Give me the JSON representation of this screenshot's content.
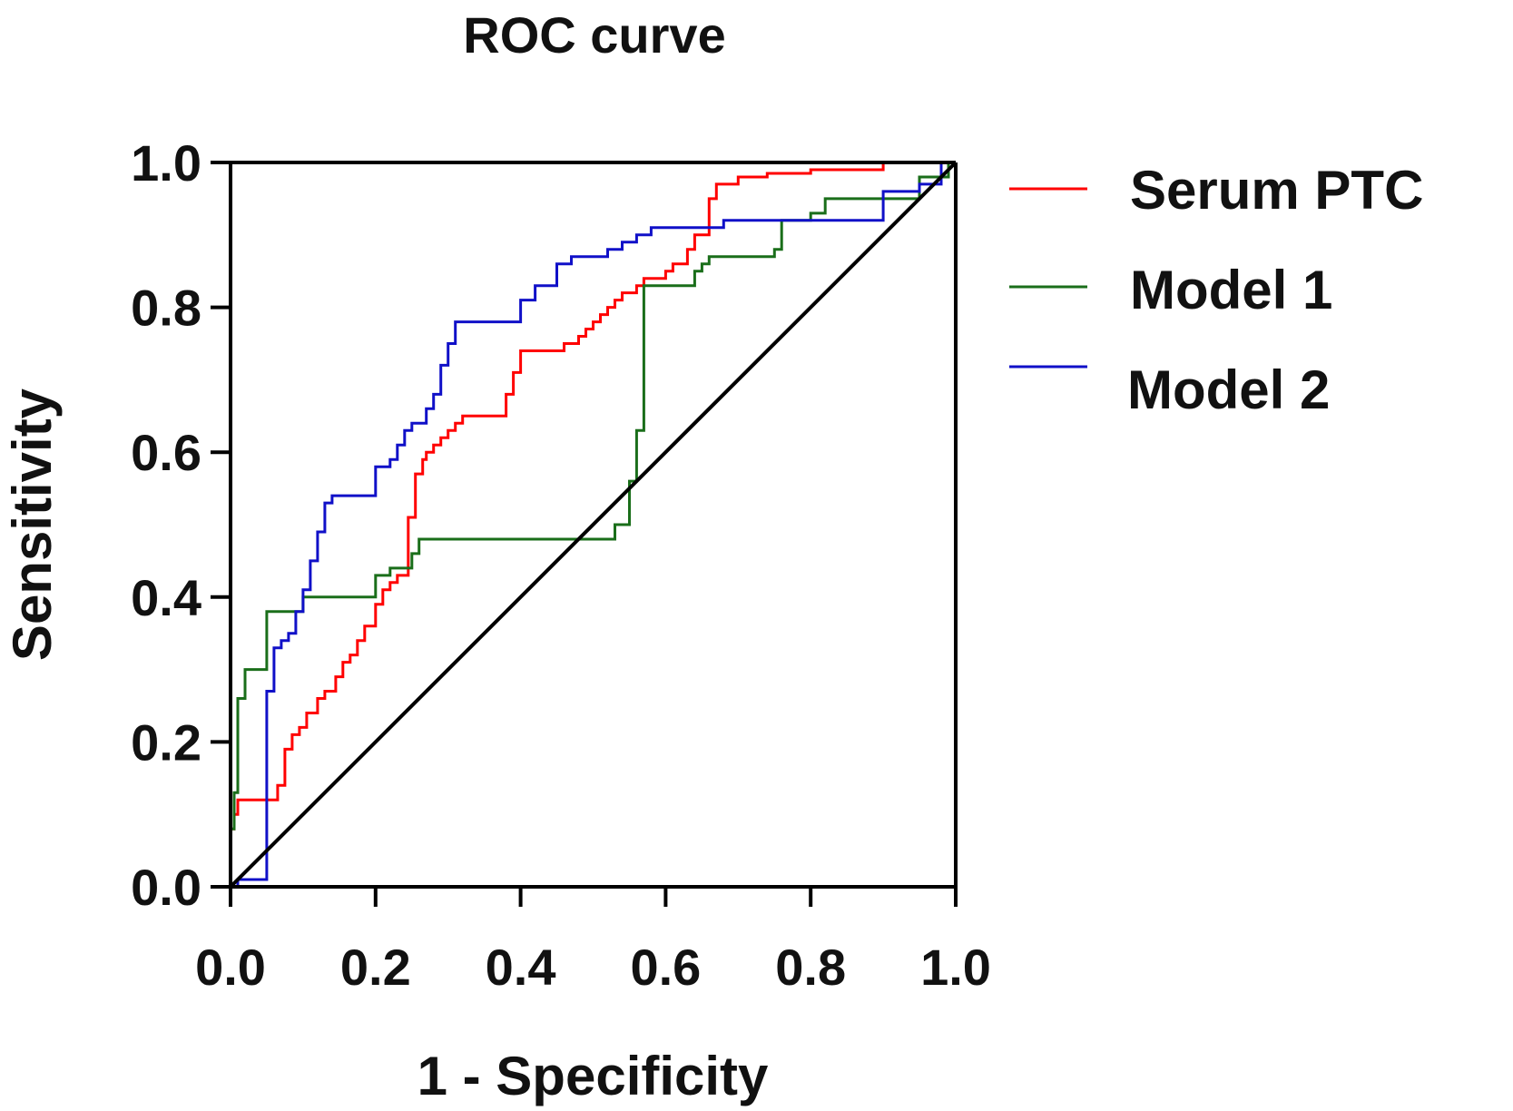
{
  "chart_data": {
    "type": "line",
    "title": "ROC curve",
    "xlabel": "1 - Specificity",
    "ylabel": "Sensitivity",
    "xlim": [
      0,
      1
    ],
    "ylim": [
      0,
      1
    ],
    "xticks": [
      0,
      0.2,
      0.4,
      0.6,
      0.8,
      1.0
    ],
    "yticks": [
      0,
      0.2,
      0.4,
      0.6,
      0.8,
      1.0
    ],
    "xtick_labels": [
      "0.0",
      "0.2",
      "0.4",
      "0.6",
      "0.8",
      "1.0"
    ],
    "ytick_labels": [
      "0.0",
      "0.2",
      "0.4",
      "0.6",
      "0.8",
      "1.0"
    ],
    "grid": false,
    "legend_position": "right",
    "reference_line": {
      "name": "Reference",
      "color": "#000000",
      "x": [
        0,
        1
      ],
      "y": [
        0,
        1
      ]
    },
    "series": [
      {
        "name": "Serum PTC",
        "color": "#ff0000",
        "x": [
          0,
          0,
          0.005,
          0.005,
          0.01,
          0.01,
          0.025,
          0.025,
          0.065,
          0.065,
          0.075,
          0.075,
          0.085,
          0.085,
          0.095,
          0.095,
          0.105,
          0.105,
          0.12,
          0.12,
          0.13,
          0.13,
          0.145,
          0.145,
          0.155,
          0.155,
          0.165,
          0.165,
          0.175,
          0.175,
          0.185,
          0.185,
          0.2,
          0.2,
          0.21,
          0.21,
          0.22,
          0.22,
          0.23,
          0.23,
          0.245,
          0.245,
          0.255,
          0.255,
          0.265,
          0.265,
          0.27,
          0.27,
          0.28,
          0.28,
          0.29,
          0.29,
          0.3,
          0.3,
          0.31,
          0.31,
          0.32,
          0.32,
          0.33,
          0.33,
          0.38,
          0.38,
          0.39,
          0.39,
          0.4,
          0.4,
          0.46,
          0.46,
          0.48,
          0.48,
          0.49,
          0.49,
          0.5,
          0.5,
          0.51,
          0.51,
          0.52,
          0.52,
          0.53,
          0.53,
          0.54,
          0.54,
          0.56,
          0.56,
          0.57,
          0.57,
          0.6,
          0.6,
          0.61,
          0.61,
          0.63,
          0.63,
          0.64,
          0.64,
          0.66,
          0.66,
          0.67,
          0.67,
          0.7,
          0.7,
          0.74,
          0.74,
          0.8,
          0.8,
          0.9,
          0.9,
          1.0
        ],
        "y": [
          0,
          0.08,
          0.08,
          0.1,
          0.1,
          0.12,
          0.12,
          0.12,
          0.12,
          0.14,
          0.14,
          0.19,
          0.19,
          0.21,
          0.21,
          0.22,
          0.22,
          0.24,
          0.24,
          0.26,
          0.26,
          0.27,
          0.27,
          0.29,
          0.29,
          0.31,
          0.31,
          0.32,
          0.32,
          0.34,
          0.34,
          0.36,
          0.36,
          0.39,
          0.39,
          0.41,
          0.41,
          0.42,
          0.42,
          0.43,
          0.43,
          0.51,
          0.51,
          0.57,
          0.57,
          0.59,
          0.59,
          0.6,
          0.6,
          0.61,
          0.61,
          0.62,
          0.62,
          0.63,
          0.63,
          0.64,
          0.64,
          0.65,
          0.65,
          0.65,
          0.65,
          0.68,
          0.68,
          0.71,
          0.71,
          0.74,
          0.74,
          0.75,
          0.75,
          0.76,
          0.76,
          0.77,
          0.77,
          0.78,
          0.78,
          0.79,
          0.79,
          0.8,
          0.8,
          0.81,
          0.81,
          0.82,
          0.82,
          0.83,
          0.83,
          0.84,
          0.84,
          0.85,
          0.85,
          0.86,
          0.86,
          0.88,
          0.88,
          0.9,
          0.9,
          0.95,
          0.95,
          0.97,
          0.97,
          0.98,
          0.98,
          0.985,
          0.985,
          0.99,
          0.99,
          1.0,
          1.0
        ]
      },
      {
        "name": "Model 1",
        "color": "#1a6e1a",
        "x": [
          0,
          0,
          0.005,
          0.005,
          0.01,
          0.01,
          0.02,
          0.02,
          0.05,
          0.05,
          0.1,
          0.1,
          0.2,
          0.2,
          0.22,
          0.22,
          0.25,
          0.25,
          0.26,
          0.26,
          0.53,
          0.53,
          0.55,
          0.55,
          0.56,
          0.56,
          0.57,
          0.57,
          0.64,
          0.64,
          0.65,
          0.65,
          0.66,
          0.66,
          0.75,
          0.75,
          0.76,
          0.76,
          0.8,
          0.8,
          0.82,
          0.82,
          0.95,
          0.95,
          0.99,
          0.99,
          1.0
        ],
        "y": [
          0,
          0.08,
          0.08,
          0.13,
          0.13,
          0.26,
          0.26,
          0.3,
          0.3,
          0.38,
          0.38,
          0.4,
          0.4,
          0.43,
          0.43,
          0.44,
          0.44,
          0.46,
          0.46,
          0.48,
          0.48,
          0.5,
          0.5,
          0.56,
          0.56,
          0.63,
          0.63,
          0.83,
          0.83,
          0.85,
          0.85,
          0.86,
          0.86,
          0.87,
          0.87,
          0.88,
          0.88,
          0.92,
          0.92,
          0.93,
          0.93,
          0.95,
          0.95,
          0.98,
          0.98,
          1.0,
          1.0
        ]
      },
      {
        "name": "Model 2",
        "color": "#1010c8",
        "x": [
          0,
          0.01,
          0.01,
          0.02,
          0.02,
          0.05,
          0.05,
          0.06,
          0.06,
          0.07,
          0.07,
          0.08,
          0.08,
          0.09,
          0.09,
          0.1,
          0.1,
          0.11,
          0.11,
          0.12,
          0.12,
          0.13,
          0.13,
          0.14,
          0.14,
          0.2,
          0.2,
          0.22,
          0.22,
          0.23,
          0.23,
          0.24,
          0.24,
          0.25,
          0.25,
          0.27,
          0.27,
          0.28,
          0.28,
          0.29,
          0.29,
          0.3,
          0.3,
          0.31,
          0.31,
          0.4,
          0.4,
          0.42,
          0.42,
          0.45,
          0.45,
          0.47,
          0.47,
          0.52,
          0.52,
          0.54,
          0.54,
          0.56,
          0.56,
          0.58,
          0.58,
          0.6,
          0.6,
          0.68,
          0.68,
          0.74,
          0.74,
          0.9,
          0.9,
          0.95,
          0.95,
          0.98,
          0.98,
          1.0
        ],
        "y": [
          0,
          0,
          0.01,
          0.01,
          0.01,
          0.01,
          0.27,
          0.27,
          0.33,
          0.33,
          0.34,
          0.34,
          0.35,
          0.35,
          0.38,
          0.38,
          0.41,
          0.41,
          0.45,
          0.45,
          0.49,
          0.49,
          0.53,
          0.53,
          0.54,
          0.54,
          0.58,
          0.58,
          0.59,
          0.59,
          0.61,
          0.61,
          0.63,
          0.63,
          0.64,
          0.64,
          0.66,
          0.66,
          0.68,
          0.68,
          0.72,
          0.72,
          0.75,
          0.75,
          0.78,
          0.78,
          0.81,
          0.81,
          0.83,
          0.83,
          0.86,
          0.86,
          0.87,
          0.87,
          0.88,
          0.88,
          0.89,
          0.89,
          0.9,
          0.9,
          0.91,
          0.91,
          0.91,
          0.91,
          0.92,
          0.92,
          0.92,
          0.92,
          0.96,
          0.96,
          0.97,
          0.97,
          1.0,
          1.0
        ]
      }
    ]
  }
}
